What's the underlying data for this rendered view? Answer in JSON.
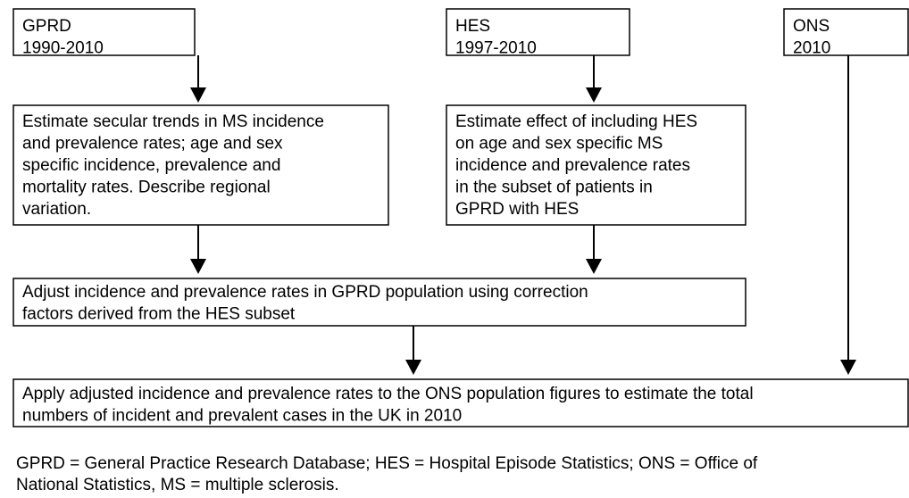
{
  "nodes": [
    {
      "lines": [
        "GPRD",
        "1990-2010"
      ]
    },
    {
      "lines": [
        "HES",
        "1997-2010"
      ]
    },
    {
      "lines": [
        "ONS",
        "2010"
      ]
    },
    {
      "lines": [
        "Estimate secular trends in MS incidence",
        "and prevalence rates; age and sex",
        "specific incidence, prevalence and",
        "mortality rates. Describe regional",
        "variation."
      ]
    },
    {
      "lines": [
        "Estimate effect of including HES",
        "on age and sex specific MS",
        "incidence and prevalence rates",
        "in the subset of patients in",
        "GPRD with HES"
      ]
    },
    {
      "lines": [
        "Adjust incidence and prevalence rates in GPRD population using correction",
        "factors derived from the HES subset"
      ]
    },
    {
      "lines": [
        "Apply adjusted incidence and prevalence rates to the ONS population figures to estimate the total",
        "numbers of incident and prevalent cases in the UK in 2010"
      ]
    }
  ],
  "footnote": {
    "lines": [
      "GPRD = General Practice Research Database; HES = Hospital Episode Statistics; ONS = Office of",
      "National Statistics, MS = multiple sclerosis."
    ]
  }
}
